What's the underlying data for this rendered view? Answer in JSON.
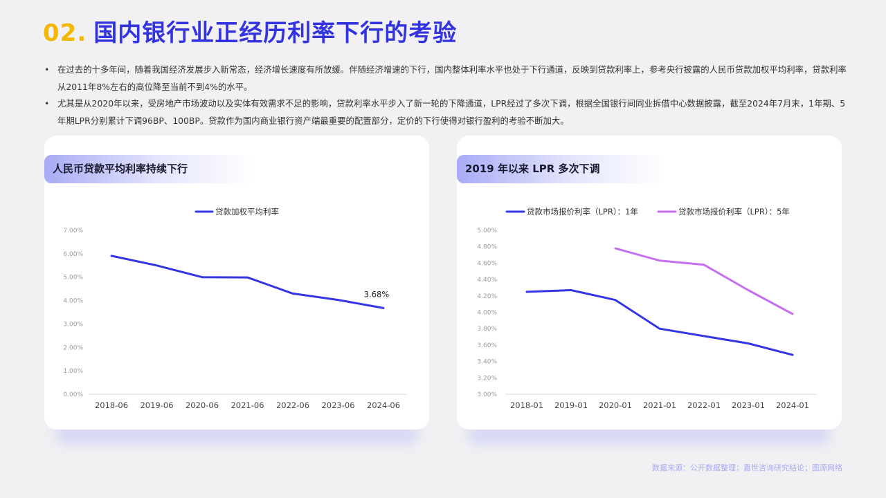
{
  "page": {
    "title_num": "02.",
    "title_text": "国内银行业正经历利率下行的考验",
    "bullets": [
      "在过去的十多年间，随着我国经济发展步入新常态，经济增长速度有所放缓。伴随经济增速的下行，国内整体利率水平也处于下行通道，反映到贷款利率上，参考央行披露的人民币贷款加权平均利率，贷款利率从2011年8%左右的高位降至当前不到4%的水平。",
      "尤其是从2020年以来，受房地产市场波动以及实体有效需求不足的影响，贷款利率水平步入了新一轮的下降通道，LPR经过了多次下调，根据全国银行间同业拆借中心数据披露，截至2024年7月末，1年期、5年期LPR分别累计下调96BP、100BP。贷款作为国内商业银行资产端最重要的配置部分，定价的下行使得对银行盈利的考验不断加大。"
    ],
    "source": "数据来源：公开数据整理；嘉世咨询研究结论；图源网络"
  },
  "colors": {
    "accent_yellow": "#f5b800",
    "accent_blue": "#3333e0",
    "series_blue": "#3535e6",
    "series_purple": "#c66ef0"
  },
  "cards": [
    {
      "title": "人民币贷款平均利率持续下行"
    },
    {
      "title": "2019 年以来 LPR 多次下调"
    }
  ],
  "chart_data": [
    {
      "type": "line",
      "title": "人民币贷款平均利率持续下行",
      "categories": [
        "2018-06",
        "2019-06",
        "2020-06",
        "2021-06",
        "2022-06",
        "2023-06",
        "2024-06"
      ],
      "ylim": [
        0,
        7
      ],
      "yticks": [
        "0.00%",
        "1.00%",
        "2.00%",
        "3.00%",
        "4.00%",
        "5.00%",
        "6.00%",
        "7.00%"
      ],
      "legend_position": "top-center",
      "grid": false,
      "series": [
        {
          "name": "贷款加权平均利率",
          "color": "#3535e6",
          "values": [
            5.91,
            5.5,
            5.0,
            4.99,
            4.3,
            4.03,
            3.68
          ]
        }
      ],
      "annotations": [
        {
          "series": 0,
          "index": 6,
          "text": "3.68%"
        }
      ]
    },
    {
      "type": "line",
      "title": "2019 年以来 LPR 多次下调",
      "categories": [
        "2018-01",
        "2019-01",
        "2020-01",
        "2021-01",
        "2022-01",
        "2023-01",
        "2024-01"
      ],
      "ylim": [
        3.0,
        5.0
      ],
      "yticks": [
        "3.00%",
        "3.20%",
        "3.40%",
        "3.60%",
        "3.80%",
        "4.00%",
        "4.20%",
        "4.40%",
        "4.60%",
        "4.80%",
        "5.00%"
      ],
      "legend_position": "top-center",
      "grid": false,
      "series": [
        {
          "name": "贷款市场报价利率（LPR）：1年",
          "color": "#3535e6",
          "values": [
            4.25,
            4.27,
            4.15,
            3.8,
            3.71,
            3.62,
            3.48
          ]
        },
        {
          "name": "贷款市场报价利率（LPR）：5年",
          "color": "#c66ef0",
          "values": [
            null,
            null,
            4.78,
            4.63,
            4.58,
            4.27,
            3.98
          ]
        }
      ]
    }
  ]
}
